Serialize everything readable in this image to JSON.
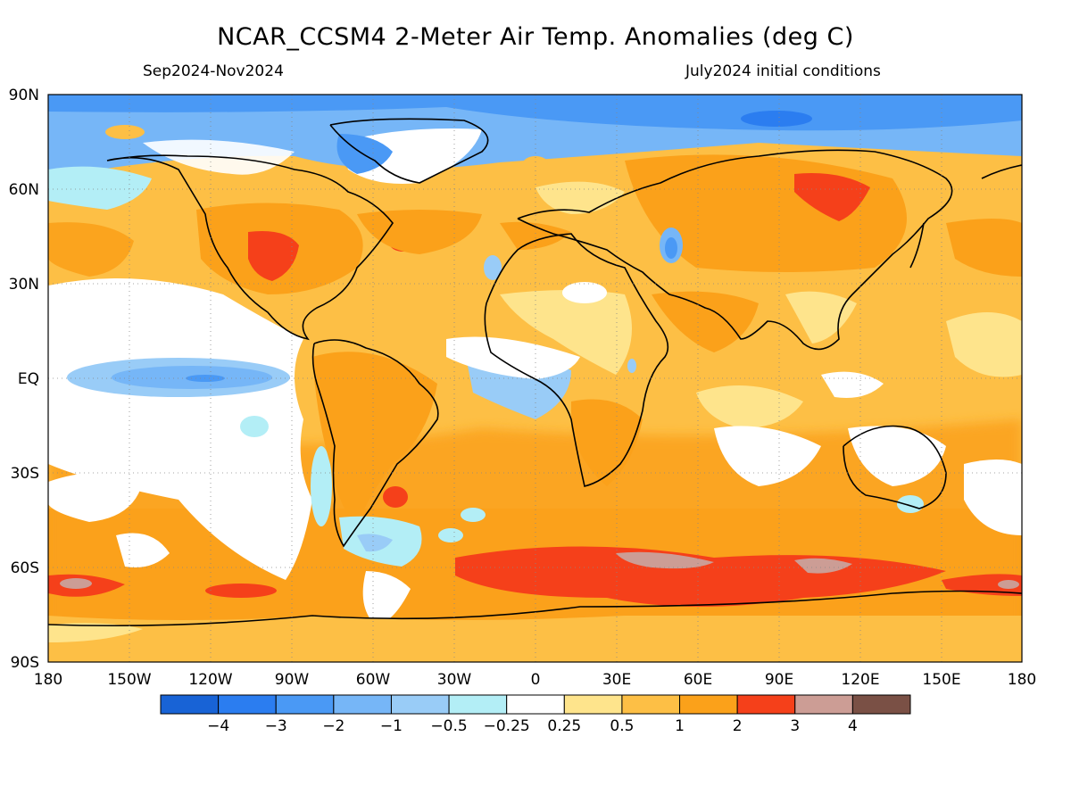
{
  "title": "NCAR_CCSM4 2-Meter Air Temp. Anomalies (deg C)",
  "period": "Sep2024-Nov2024",
  "init": "July2024 initial conditions",
  "lat_labels": [
    "90N",
    "60N",
    "30N",
    "EQ",
    "30S",
    "60S",
    "90S"
  ],
  "lon_labels": [
    "180",
    "150W",
    "120W",
    "90W",
    "60W",
    "30W",
    "0",
    "30E",
    "60E",
    "90E",
    "120E",
    "150E",
    "180"
  ],
  "colorbar": {
    "colors": [
      "#1863d6",
      "#2b7df0",
      "#4a99f5",
      "#76b6f7",
      "#99ccf7",
      "#b3eef6",
      "#ffffff",
      "#fee48c",
      "#fdbf45",
      "#fba11a",
      "#f5401a",
      "#cc9d95",
      "#7a5045"
    ],
    "labels": [
      "−4",
      "−3",
      "−2",
      "−1",
      "−0.5",
      "−0.25",
      "0.25",
      "0.5",
      "1",
      "2",
      "3",
      "4"
    ]
  }
}
